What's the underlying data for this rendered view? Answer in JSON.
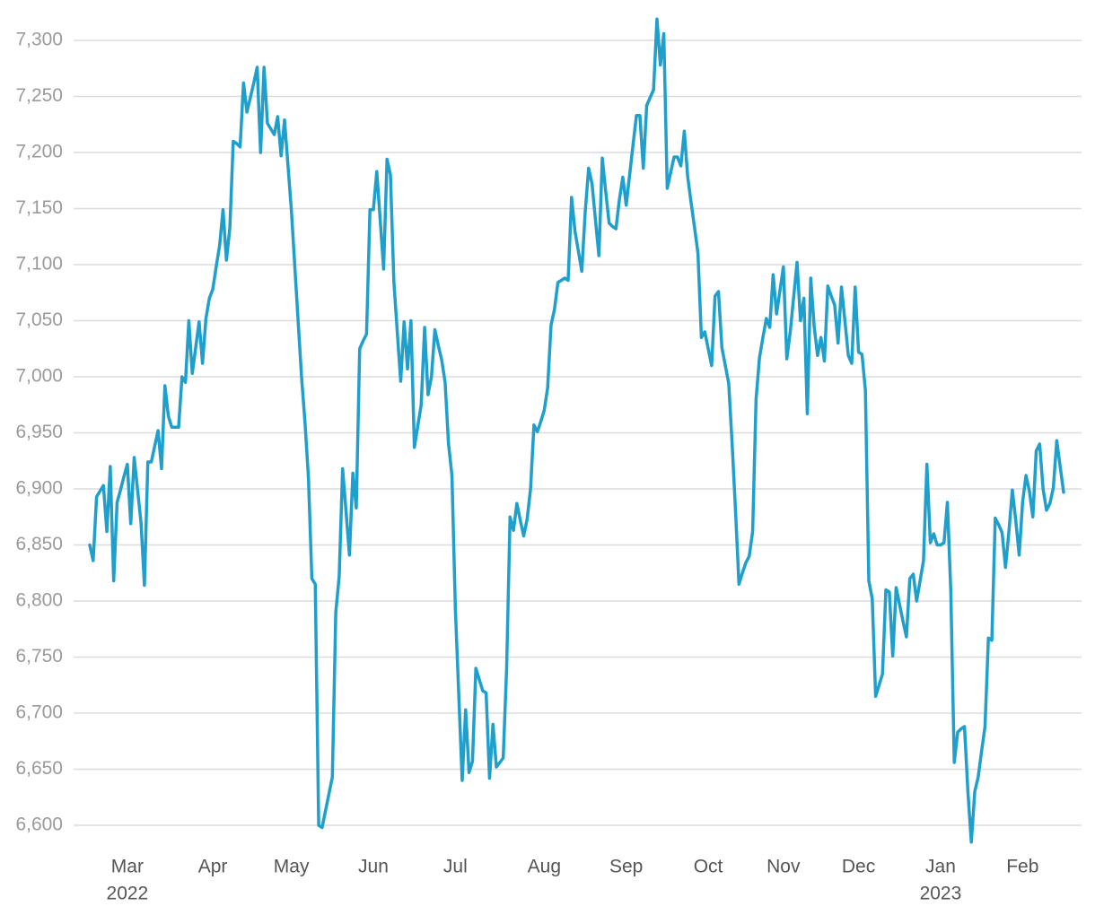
{
  "chart_data": {
    "type": "line",
    "color": "#1fa0cc",
    "grid": true,
    "ylim": [
      6580,
      7320
    ],
    "yticks": [
      {
        "value": 6600,
        "label": "6,600"
      },
      {
        "value": 6650,
        "label": "6,650"
      },
      {
        "value": 6700,
        "label": "6,700"
      },
      {
        "value": 6750,
        "label": "6,750"
      },
      {
        "value": 6800,
        "label": "6,800"
      },
      {
        "value": 6850,
        "label": "6,850"
      },
      {
        "value": 6900,
        "label": "6,900"
      },
      {
        "value": 6950,
        "label": "6,950"
      },
      {
        "value": 7000,
        "label": "7,000"
      },
      {
        "value": 7050,
        "label": "7,050"
      },
      {
        "value": 7100,
        "label": "7,100"
      },
      {
        "value": 7150,
        "label": "7,150"
      },
      {
        "value": 7200,
        "label": "7,200"
      },
      {
        "value": 7250,
        "label": "7,250"
      },
      {
        "value": 7300,
        "label": "7,300"
      }
    ],
    "categories": [
      null,
      null,
      null,
      null,
      null,
      null,
      null,
      null,
      null,
      null,
      null,
      [
        "Mar",
        "2022"
      ],
      null,
      null,
      null,
      null,
      null,
      null,
      null,
      null,
      null,
      null,
      null,
      null,
      null,
      null,
      null,
      null,
      null,
      null,
      null,
      null,
      null,
      null,
      null,
      null,
      "Apr",
      null,
      null,
      null,
      null,
      null,
      null,
      null,
      null,
      null,
      null,
      null,
      null,
      null,
      null,
      null,
      null,
      null,
      null,
      null,
      null,
      null,
      null,
      "May",
      null,
      null,
      null,
      null,
      null,
      null,
      null,
      null,
      null,
      null,
      null,
      null,
      null,
      null,
      null,
      null,
      null,
      null,
      null,
      null,
      null,
      null,
      null,
      "Jun",
      null,
      null,
      null,
      null,
      null,
      null,
      null,
      null,
      null,
      null,
      null,
      null,
      null,
      null,
      null,
      null,
      null,
      null,
      null,
      null,
      null,
      null,
      null,
      "Jul",
      null,
      null,
      null,
      null,
      null,
      null,
      null,
      null,
      null,
      null,
      null,
      null,
      null,
      null,
      null,
      null,
      null,
      null,
      null,
      null,
      null,
      null,
      null,
      null,
      null,
      "Aug",
      null,
      null,
      null,
      null,
      null,
      null,
      null,
      null,
      null,
      null,
      null,
      null,
      null,
      null,
      null,
      null,
      null,
      null,
      null,
      null,
      null,
      null,
      null,
      "Sep",
      null,
      null,
      null,
      null,
      null,
      null,
      null,
      null,
      null,
      null,
      null,
      null,
      null,
      null,
      null,
      null,
      null,
      null,
      null,
      null,
      null,
      null,
      null,
      "Oct",
      null,
      null,
      null,
      null,
      null,
      null,
      null,
      null,
      null,
      null,
      null,
      null,
      null,
      null,
      null,
      null,
      null,
      null,
      null,
      null,
      null,
      "Nov",
      null,
      null,
      null,
      null,
      null,
      null,
      null,
      null,
      null,
      null,
      null,
      null,
      null,
      null,
      null,
      null,
      null,
      null,
      null,
      null,
      null,
      "Dec",
      null,
      null,
      null,
      null,
      null,
      null,
      null,
      null,
      null,
      null,
      null,
      null,
      null,
      null,
      null,
      null,
      null,
      null,
      null,
      null,
      null,
      null,
      null,
      [
        "Jan",
        "2023"
      ],
      null,
      null,
      null,
      null,
      null,
      null,
      null,
      null,
      null,
      null,
      null,
      null,
      null,
      null,
      null,
      null,
      null,
      null,
      null,
      null,
      null,
      null,
      null,
      "Feb",
      null,
      null,
      null,
      null,
      null,
      null,
      null,
      null,
      null,
      null,
      null,
      null
    ],
    "values": [
      6850,
      6836,
      6893,
      6898,
      6903,
      6862,
      6920,
      6818,
      6888,
      6899,
      6911,
      6922,
      6869,
      6928,
      6899,
      6870,
      6814,
      6924,
      6924,
      6938,
      6952,
      6918,
      6992,
      6965,
      6955,
      6955,
      6955,
      7000,
      6995,
      7050,
      7003,
      7026,
      7049,
      7012,
      7052,
      7070,
      7078,
      7098,
      7117,
      7149,
      7104,
      7133,
      7210,
      7208,
      7205,
      7262,
      7236,
      7249,
      7262,
      7276,
      7200,
      7276,
      7226,
      7221,
      7216,
      7232,
      7197,
      7229,
      7189,
      7149,
      7099,
      7049,
      6999,
      6959,
      6910,
      6820,
      6815,
      6600,
      6598,
      6613,
      6628,
      6643,
      6790,
      6822,
      6918,
      6880,
      6841,
      6914,
      6883,
      7025,
      7032,
      7038,
      7149,
      7149,
      7183,
      7140,
      7096,
      7194,
      7180,
      7085,
      7040,
      6996,
      7049,
      7007,
      7050,
      6937,
      6956,
      6975,
      7044,
      6984,
      7000,
      7042,
      7028,
      7015,
      6995,
      6940,
      6912,
      6793,
      6716,
      6640,
      6703,
      6647,
      6657,
      6740,
      6730,
      6720,
      6718,
      6642,
      6690,
      6652,
      6656,
      6660,
      6740,
      6875,
      6863,
      6887,
      6872,
      6858,
      6873,
      6900,
      6957,
      6951,
      6960,
      6970,
      6990,
      7046,
      7060,
      7084,
      7086,
      7088,
      7086,
      7160,
      7130,
      7112,
      7094,
      7147,
      7186,
      7172,
      7140,
      7108,
      7195,
      7165,
      7137,
      7134,
      7132,
      7158,
      7178,
      7153,
      7180,
      7207,
      7233,
      7233,
      7186,
      7242,
      7249,
      7256,
      7319,
      7278,
      7306,
      7168,
      7182,
      7196,
      7196,
      7188,
      7219,
      7178,
      7155,
      7133,
      7110,
      7035,
      7040,
      7025,
      7010,
      7072,
      7076,
      7026,
      7010,
      6994,
      6940,
      6880,
      6815,
      6825,
      6834,
      6840,
      6862,
      6980,
      7017,
      7035,
      7052,
      7044,
      7091,
      7056,
      7077,
      7098,
      7016,
      7040,
      7071,
      7102,
      7050,
      7070,
      6967,
      7088,
      7045,
      7019,
      7035,
      7014,
      7081,
      7072,
      7064,
      7030,
      7080,
      7050,
      7019,
      7012,
      7080,
      7022,
      7020,
      6988,
      6818,
      6802,
      6715,
      6725,
      6735,
      6810,
      6808,
      6751,
      6812,
      6797,
      6782,
      6768,
      6820,
      6824,
      6800,
      6818,
      6836,
      6922,
      6852,
      6860,
      6850,
      6850,
      6852,
      6888,
      6808,
      6656,
      6683,
      6686,
      6688,
      6630,
      6585,
      6630,
      6643,
      6666,
      6688,
      6767,
      6765,
      6874,
      6868,
      6861,
      6830,
      6862,
      6899,
      6872,
      6841,
      6888,
      6912,
      6898,
      6875,
      6934,
      6940,
      6900,
      6881,
      6887,
      6901,
      6943,
      6920,
      6897
    ]
  }
}
